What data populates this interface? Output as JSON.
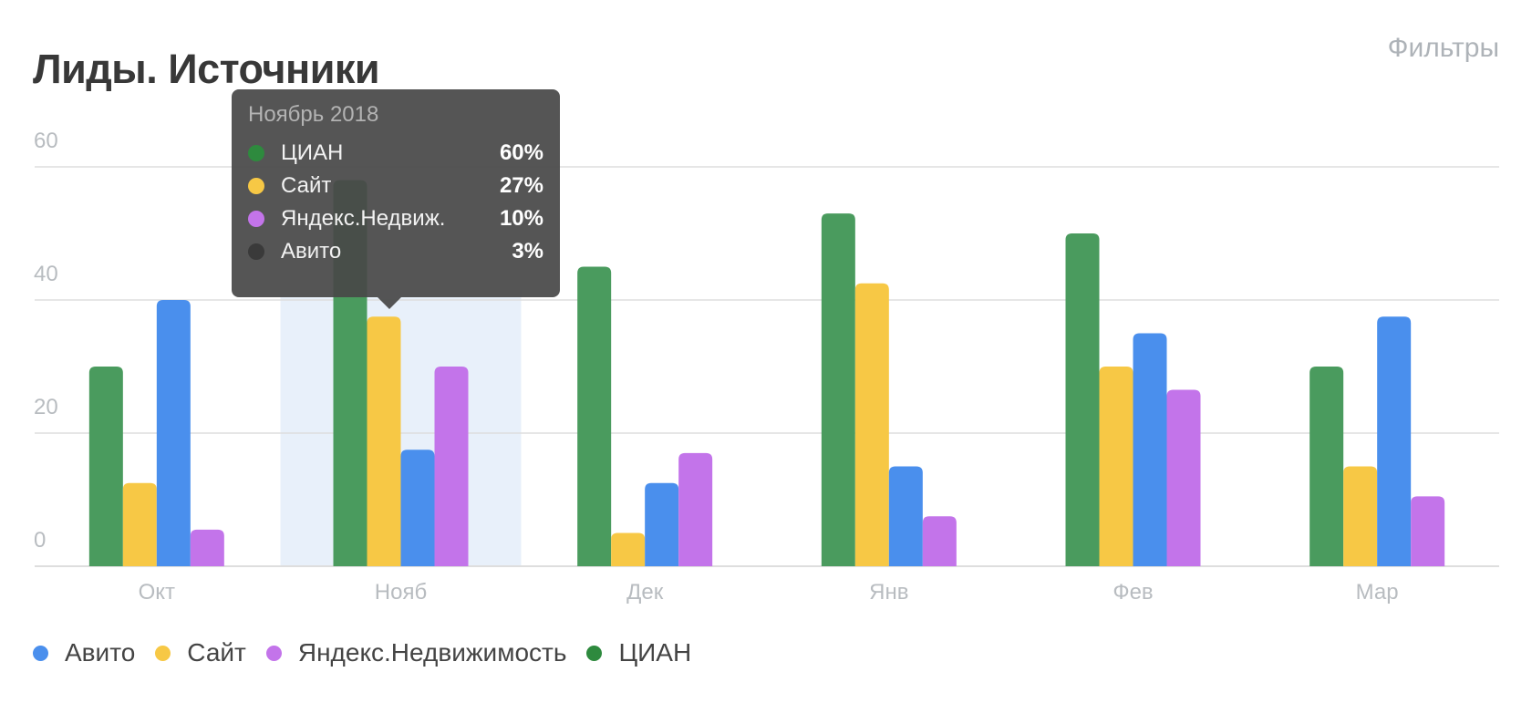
{
  "header": {
    "title": "Лиды. Источники",
    "filters_label": "Фильтры"
  },
  "colors": {
    "Авито": "#4a8fed",
    "Сайт": "#f7c845",
    "Яндекс.Недвижимость": "#c374ea",
    "ЦИАН": "#4a9b5e"
  },
  "chart_data": {
    "type": "bar",
    "title": "Лиды. Источники",
    "categories": [
      "Окт",
      "Нояб",
      "Дек",
      "Янв",
      "Фев",
      "Мар"
    ],
    "yticks": [
      0,
      20,
      40,
      60
    ],
    "ylim": [
      0,
      60
    ],
    "grid": true,
    "legend_position": "bottom-left",
    "highlighted_category": "Нояб",
    "series": [
      {
        "name": "ЦИАН",
        "values": [
          30,
          58,
          45,
          53,
          50,
          30
        ]
      },
      {
        "name": "Сайт",
        "values": [
          12.5,
          37.5,
          5,
          42.5,
          30,
          15
        ]
      },
      {
        "name": "Авито",
        "values": [
          40,
          17.5,
          12.5,
          15,
          35,
          37.5
        ]
      },
      {
        "name": "Яндекс.Недвижимость",
        "values": [
          5.5,
          30,
          17,
          7.5,
          26.5,
          10.5
        ]
      }
    ]
  },
  "legend": [
    {
      "label": "Авито",
      "color": "#4a8fed"
    },
    {
      "label": "Сайт",
      "color": "#f7c845"
    },
    {
      "label": "Яндекс.Недвижимость",
      "color": "#c374ea"
    },
    {
      "label": "ЦИАН",
      "color": "#2e8a3e"
    }
  ],
  "tooltip": {
    "title": "Ноябрь 2018",
    "rows": [
      {
        "label": "ЦИАН",
        "value": "60%",
        "color": "#2e8a3e"
      },
      {
        "label": "Сайт",
        "value": "27%",
        "color": "#f7c845"
      },
      {
        "label": "Яндекс.Недвиж.",
        "value": "10%",
        "color": "#c374ea"
      },
      {
        "label": "Авито",
        "value": "3%",
        "color": "#3a3a3a"
      }
    ]
  }
}
